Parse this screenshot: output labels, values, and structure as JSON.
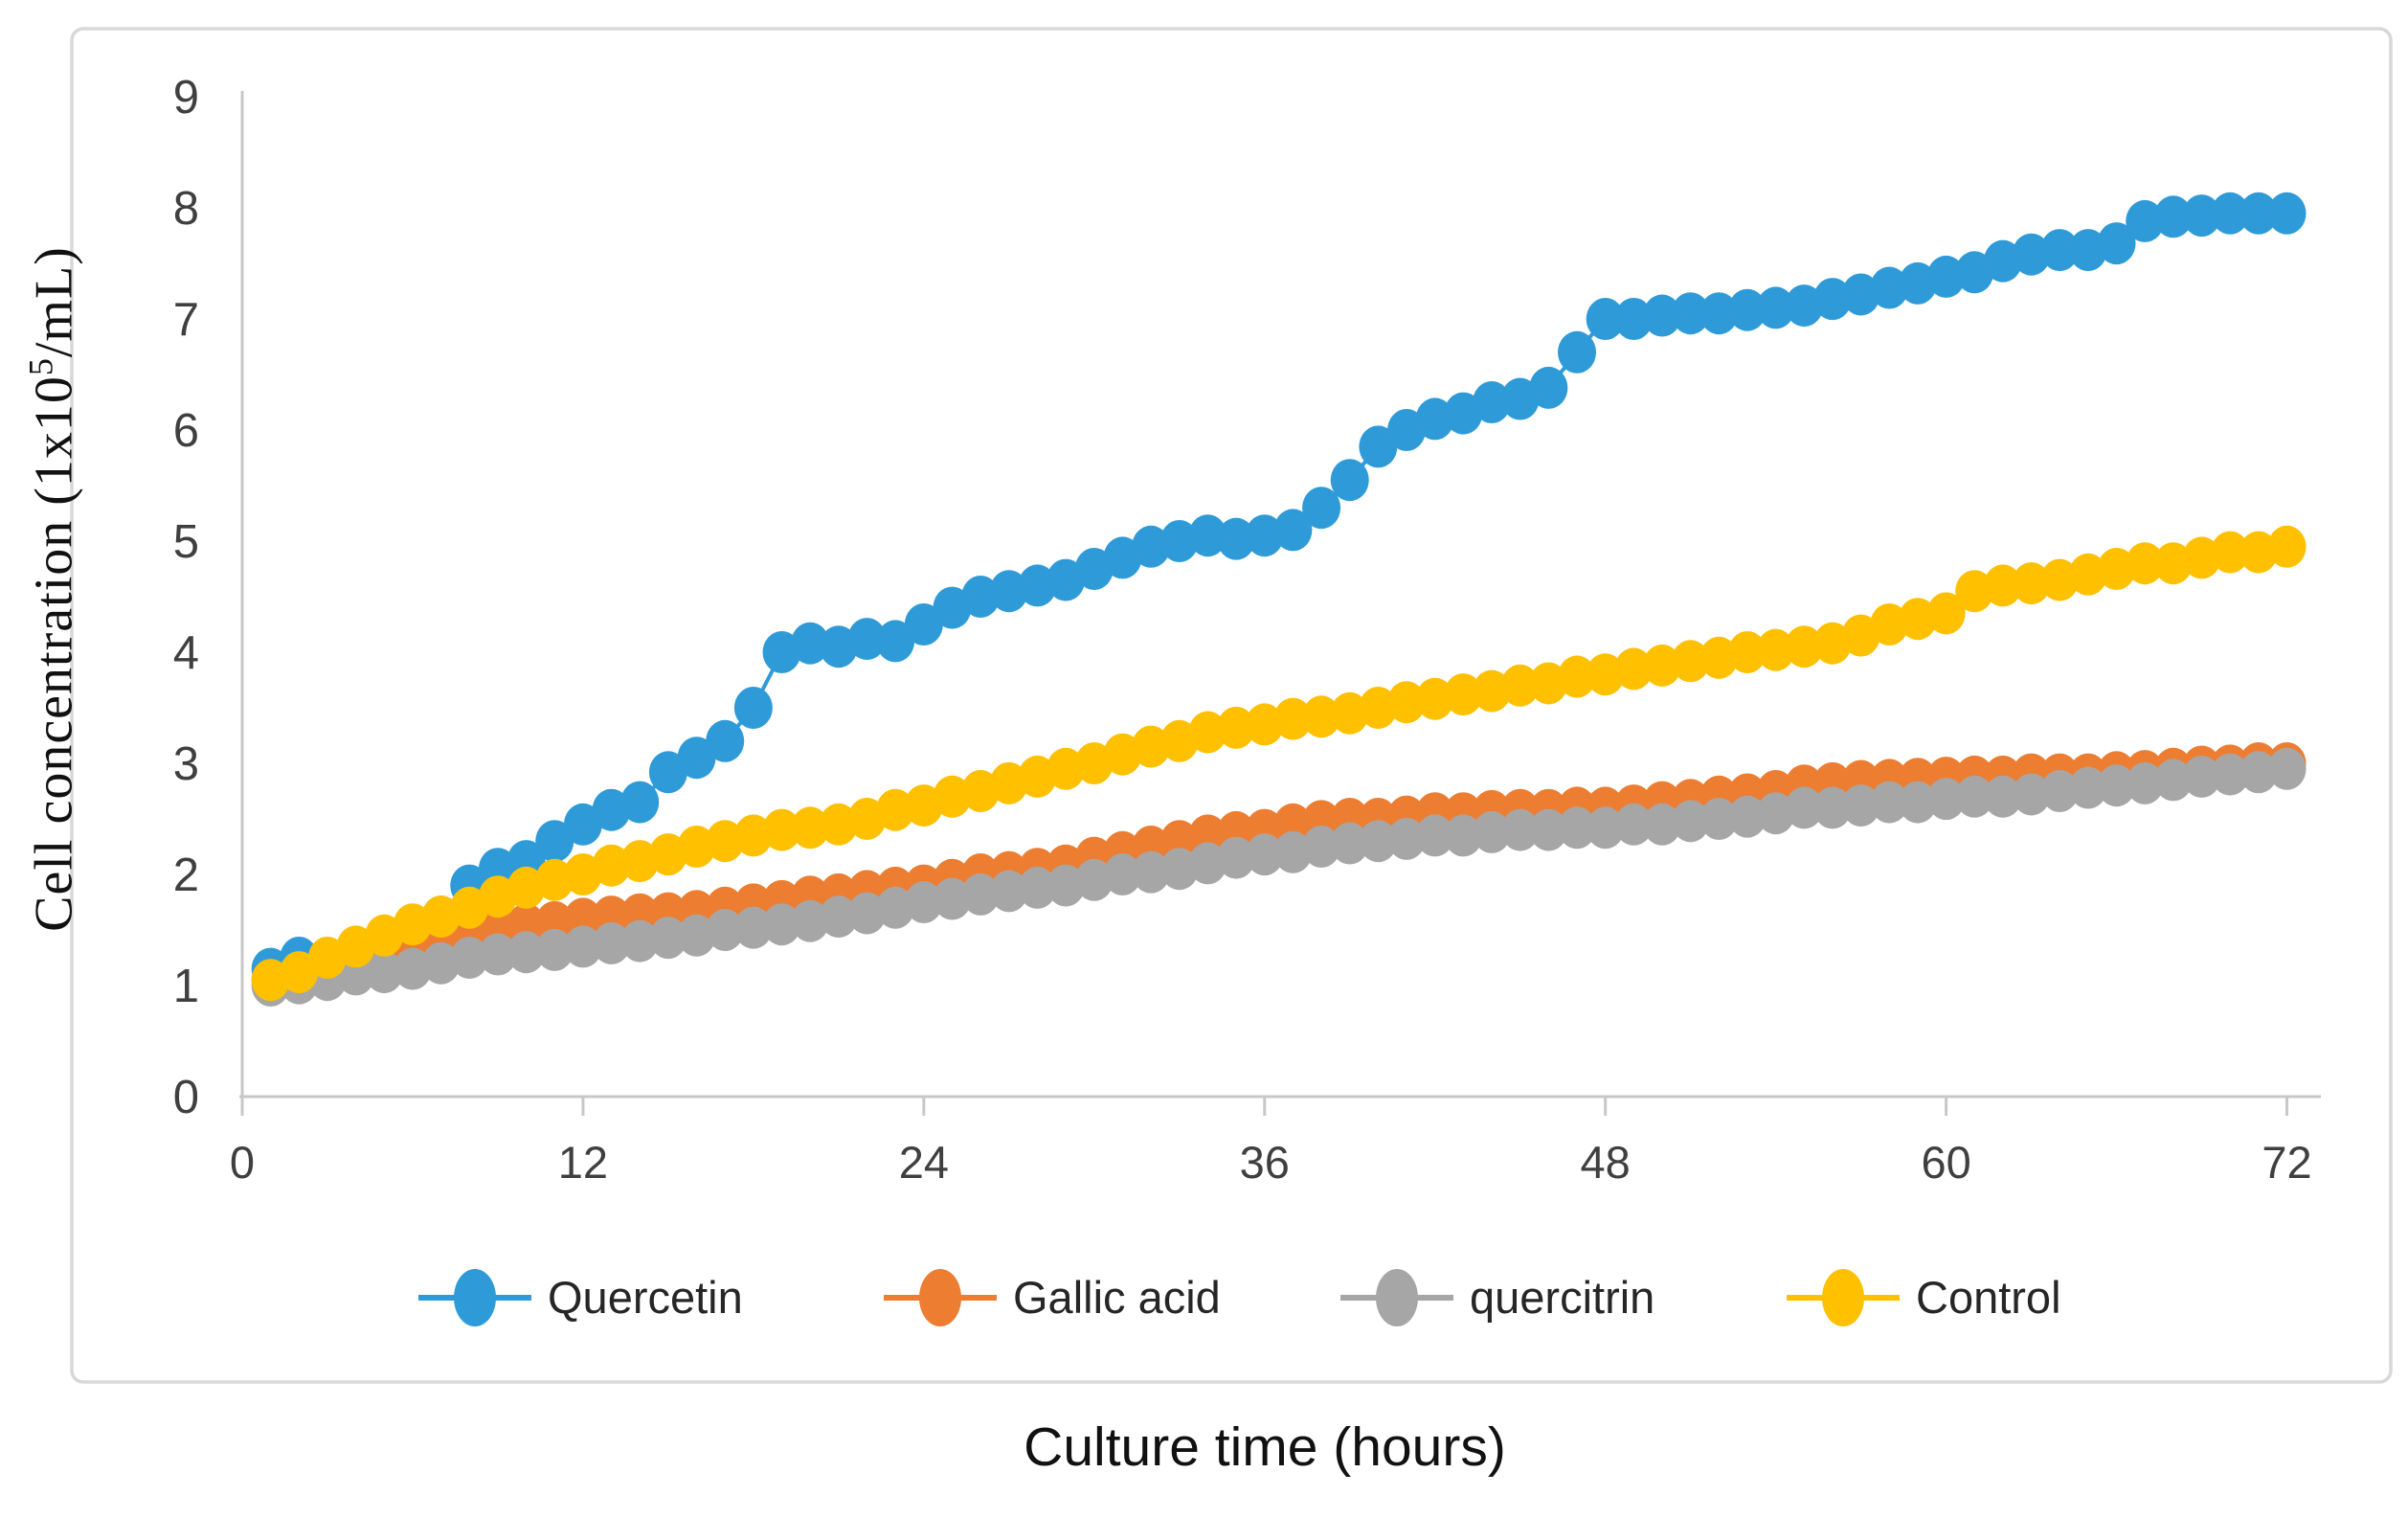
{
  "figure": {
    "x_axis_title": "Culture time (hours)",
    "y_axis_title_prefix": "Cell concentration (1x10",
    "y_axis_title_sup": "5",
    "y_axis_title_suffix": "/mL)"
  },
  "colors": {
    "quercetin_blue": "#2E9BD8",
    "gallic_orange": "#ED7D31",
    "quercitrin_gray": "#A6A6A6",
    "control_yellow": "#FFC000",
    "axis_line": "#C8C8C8",
    "figure_border": "#D8D8D8",
    "tick_text": "#3F3F3F",
    "legend_text": "#262626"
  },
  "chart_data": {
    "type": "scatter",
    "title": "",
    "xlabel": "Culture time (hours)",
    "ylabel": "Cell concentration (1x10^5/mL)",
    "xlim": [
      0,
      72
    ],
    "ylim": [
      0,
      9
    ],
    "x_ticks": [
      0,
      12,
      24,
      36,
      48,
      60,
      72
    ],
    "y_ticks": [
      0,
      1,
      2,
      3,
      4,
      5,
      6,
      7,
      8,
      9
    ],
    "grid": false,
    "legend_position": "bottom",
    "x": [
      1,
      2,
      3,
      4,
      5,
      6,
      7,
      8,
      9,
      10,
      11,
      12,
      13,
      14,
      15,
      16,
      17,
      18,
      19,
      20,
      21,
      22,
      23,
      24,
      25,
      26,
      27,
      28,
      29,
      30,
      31,
      32,
      33,
      34,
      35,
      36,
      37,
      38,
      39,
      40,
      41,
      42,
      43,
      44,
      45,
      46,
      47,
      48,
      49,
      50,
      51,
      52,
      53,
      54,
      55,
      56,
      57,
      58,
      59,
      60,
      61,
      62,
      63,
      64,
      65,
      66,
      67,
      68,
      69,
      70,
      71,
      72
    ],
    "series": [
      {
        "name": "Quercetin",
        "color": "#2E9BD8",
        "values": [
          1.15,
          1.25,
          1.15,
          1.3,
          1.42,
          1.5,
          1.62,
          1.9,
          2.05,
          2.12,
          2.3,
          2.45,
          2.58,
          2.65,
          2.92,
          3.05,
          3.2,
          3.5,
          4.0,
          4.08,
          4.05,
          4.12,
          4.1,
          4.25,
          4.4,
          4.5,
          4.55,
          4.6,
          4.65,
          4.75,
          4.85,
          4.95,
          5.0,
          5.05,
          5.02,
          5.05,
          5.1,
          5.3,
          5.55,
          5.85,
          6.0,
          6.1,
          6.15,
          6.25,
          6.28,
          6.38,
          6.7,
          7.0,
          7.0,
          7.03,
          7.05,
          7.05,
          7.08,
          7.1,
          7.12,
          7.18,
          7.22,
          7.28,
          7.32,
          7.38,
          7.42,
          7.52,
          7.58,
          7.62,
          7.62,
          7.68,
          7.88,
          7.92,
          7.93,
          7.95,
          7.95,
          7.95
        ]
      },
      {
        "name": "Gallic acid",
        "color": "#ED7D31",
        "values": [
          1.05,
          1.05,
          1.1,
          1.15,
          1.25,
          1.35,
          1.45,
          1.48,
          1.52,
          1.55,
          1.57,
          1.6,
          1.62,
          1.64,
          1.65,
          1.67,
          1.7,
          1.73,
          1.76,
          1.8,
          1.82,
          1.85,
          1.88,
          1.9,
          1.95,
          2.0,
          2.02,
          2.05,
          2.08,
          2.15,
          2.2,
          2.25,
          2.3,
          2.35,
          2.38,
          2.4,
          2.45,
          2.48,
          2.5,
          2.5,
          2.52,
          2.55,
          2.55,
          2.57,
          2.58,
          2.58,
          2.6,
          2.6,
          2.62,
          2.65,
          2.67,
          2.7,
          2.72,
          2.75,
          2.8,
          2.82,
          2.84,
          2.85,
          2.86,
          2.87,
          2.88,
          2.88,
          2.9,
          2.9,
          2.9,
          2.92,
          2.93,
          2.95,
          2.97,
          2.98,
          3.0,
          3.0
        ]
      },
      {
        "name": "quercitrin",
        "color": "#A6A6A6",
        "values": [
          1.0,
          1.02,
          1.05,
          1.1,
          1.12,
          1.15,
          1.2,
          1.25,
          1.28,
          1.3,
          1.32,
          1.35,
          1.38,
          1.4,
          1.43,
          1.45,
          1.5,
          1.52,
          1.55,
          1.58,
          1.62,
          1.65,
          1.7,
          1.75,
          1.78,
          1.82,
          1.85,
          1.88,
          1.9,
          1.95,
          2.0,
          2.02,
          2.05,
          2.1,
          2.15,
          2.18,
          2.2,
          2.25,
          2.28,
          2.3,
          2.32,
          2.35,
          2.35,
          2.38,
          2.4,
          2.4,
          2.42,
          2.42,
          2.45,
          2.45,
          2.48,
          2.5,
          2.52,
          2.55,
          2.6,
          2.6,
          2.62,
          2.65,
          2.65,
          2.68,
          2.7,
          2.7,
          2.72,
          2.75,
          2.78,
          2.8,
          2.82,
          2.85,
          2.88,
          2.9,
          2.92,
          2.95
        ]
      },
      {
        "name": "Control",
        "color": "#FFC000",
        "values": [
          1.05,
          1.12,
          1.25,
          1.35,
          1.45,
          1.55,
          1.62,
          1.7,
          1.8,
          1.88,
          1.95,
          2.0,
          2.08,
          2.12,
          2.18,
          2.25,
          2.3,
          2.35,
          2.4,
          2.42,
          2.45,
          2.5,
          2.58,
          2.62,
          2.7,
          2.75,
          2.82,
          2.88,
          2.95,
          3.0,
          3.08,
          3.15,
          3.2,
          3.28,
          3.32,
          3.35,
          3.4,
          3.42,
          3.45,
          3.5,
          3.55,
          3.58,
          3.62,
          3.65,
          3.7,
          3.72,
          3.78,
          3.8,
          3.85,
          3.88,
          3.92,
          3.95,
          4.0,
          4.02,
          4.05,
          4.08,
          4.15,
          4.25,
          4.3,
          4.35,
          4.55,
          4.6,
          4.62,
          4.65,
          4.7,
          4.75,
          4.8,
          4.8,
          4.85,
          4.9,
          4.9,
          4.95
        ]
      }
    ],
    "x_tick_labels": [
      "0",
      "12",
      "24",
      "36",
      "48",
      "60",
      "72"
    ],
    "y_tick_labels": [
      "0",
      "1",
      "2",
      "3",
      "4",
      "5",
      "6",
      "7",
      "8",
      "9"
    ]
  }
}
